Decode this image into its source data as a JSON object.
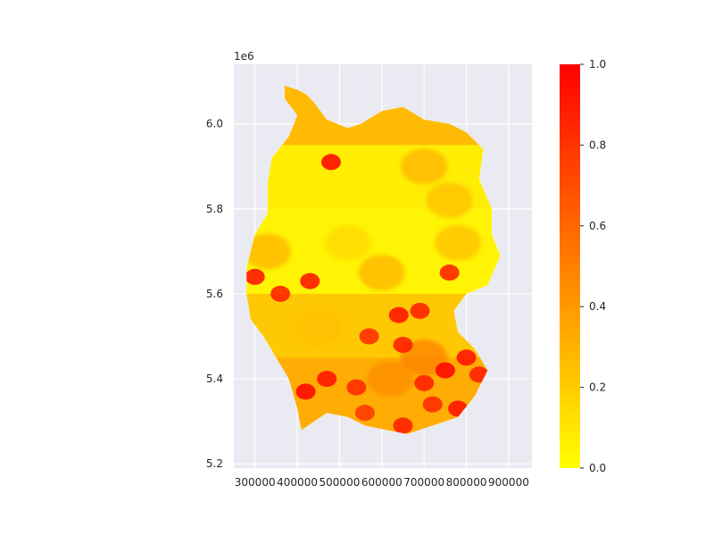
{
  "axes": {
    "x_ticks": [
      "300000",
      "400000",
      "500000",
      "600000",
      "700000",
      "800000",
      "900000"
    ],
    "x_tick_values": [
      300000,
      400000,
      500000,
      600000,
      700000,
      800000,
      900000
    ],
    "x_range": [
      250000,
      955000
    ],
    "y_ticks": [
      "5.2",
      "5.4",
      "5.6",
      "5.8",
      "6.0"
    ],
    "y_tick_values": [
      5.2,
      5.4,
      5.6,
      5.8,
      6.0
    ],
    "y_range": [
      5.19,
      6.14
    ],
    "y_offset_label": "1e6",
    "grid": true,
    "background_color": "#eaeaf2"
  },
  "colorbar": {
    "ticks": [
      "0.0",
      "0.2",
      "0.4",
      "0.6",
      "0.8",
      "1.0"
    ],
    "tick_values": [
      0.0,
      0.2,
      0.4,
      0.6,
      0.8,
      1.0
    ],
    "range": [
      0.0,
      1.0
    ],
    "colormap": "autumn_r",
    "low_color": "#ffff00",
    "high_color": "#ff0000"
  },
  "map": {
    "type": "choropleth",
    "region_outline": [
      [
        370000,
        6090000
      ],
      [
        400000,
        6080000
      ],
      [
        420000,
        6070000
      ],
      [
        440000,
        6050000
      ],
      [
        470000,
        6010000
      ],
      [
        520000,
        5990000
      ],
      [
        550000,
        6000000
      ],
      [
        600000,
        6030000
      ],
      [
        650000,
        6040000
      ],
      [
        700000,
        6010000
      ],
      [
        760000,
        6000000
      ],
      [
        800000,
        5980000
      ],
      [
        840000,
        5940000
      ],
      [
        830000,
        5870000
      ],
      [
        860000,
        5800000
      ],
      [
        860000,
        5740000
      ],
      [
        880000,
        5690000
      ],
      [
        850000,
        5620000
      ],
      [
        800000,
        5600000
      ],
      [
        770000,
        5560000
      ],
      [
        780000,
        5510000
      ],
      [
        820000,
        5470000
      ],
      [
        850000,
        5420000
      ],
      [
        820000,
        5360000
      ],
      [
        780000,
        5310000
      ],
      [
        720000,
        5290000
      ],
      [
        660000,
        5270000
      ],
      [
        610000,
        5280000
      ],
      [
        560000,
        5290000
      ],
      [
        520000,
        5310000
      ],
      [
        470000,
        5320000
      ],
      [
        410000,
        5280000
      ],
      [
        400000,
        5330000
      ],
      [
        380000,
        5400000
      ],
      [
        350000,
        5450000
      ],
      [
        320000,
        5500000
      ],
      [
        290000,
        5540000
      ],
      [
        280000,
        5600000
      ],
      [
        280000,
        5660000
      ],
      [
        300000,
        5740000
      ],
      [
        330000,
        5790000
      ],
      [
        330000,
        5860000
      ],
      [
        340000,
        5920000
      ],
      [
        380000,
        5970000
      ],
      [
        400000,
        6020000
      ],
      [
        370000,
        6060000
      ]
    ],
    "hotspots": [
      {
        "x": 480000,
        "y": 5910000,
        "value": 1.0
      },
      {
        "x": 300000,
        "y": 5640000,
        "value": 0.95
      },
      {
        "x": 360000,
        "y": 5600000,
        "value": 0.9
      },
      {
        "x": 430000,
        "y": 5630000,
        "value": 0.95
      },
      {
        "x": 760000,
        "y": 5650000,
        "value": 0.9
      },
      {
        "x": 640000,
        "y": 5550000,
        "value": 0.95
      },
      {
        "x": 690000,
        "y": 5560000,
        "value": 0.9
      },
      {
        "x": 570000,
        "y": 5500000,
        "value": 0.85
      },
      {
        "x": 650000,
        "y": 5480000,
        "value": 0.9
      },
      {
        "x": 750000,
        "y": 5420000,
        "value": 1.0
      },
      {
        "x": 800000,
        "y": 5450000,
        "value": 0.95
      },
      {
        "x": 830000,
        "y": 5410000,
        "value": 0.9
      },
      {
        "x": 420000,
        "y": 5370000,
        "value": 1.0
      },
      {
        "x": 470000,
        "y": 5400000,
        "value": 0.95
      },
      {
        "x": 540000,
        "y": 5380000,
        "value": 0.85
      },
      {
        "x": 700000,
        "y": 5390000,
        "value": 0.9
      },
      {
        "x": 780000,
        "y": 5330000,
        "value": 0.95
      },
      {
        "x": 720000,
        "y": 5340000,
        "value": 0.85
      },
      {
        "x": 560000,
        "y": 5320000,
        "value": 0.8
      },
      {
        "x": 650000,
        "y": 5290000,
        "value": 0.9
      }
    ]
  }
}
